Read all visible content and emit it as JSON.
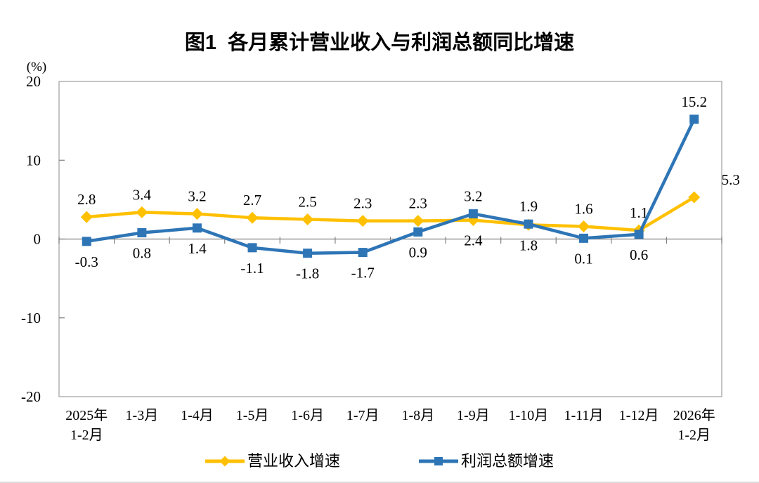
{
  "title": "图1  各月累计营业收入与利润总额同比增速",
  "chart_data": {
    "type": "line",
    "title": "图1  各月累计营业收入与利润总额同比增速",
    "unit_label": "(%)",
    "ylim": [
      -20,
      20
    ],
    "yticks": [
      20,
      10,
      0,
      -10,
      -20
    ],
    "grid": false,
    "legend_position": "bottom",
    "categories": [
      [
        "2025年",
        "1-2月"
      ],
      [
        "1-3月"
      ],
      [
        "1-4月"
      ],
      [
        "1-5月"
      ],
      [
        "1-6月"
      ],
      [
        "1-7月"
      ],
      [
        "1-8月"
      ],
      [
        "1-9月"
      ],
      [
        "1-10月"
      ],
      [
        "1-11月"
      ],
      [
        "1-12月"
      ],
      [
        "2026年",
        "1-2月"
      ]
    ],
    "series": [
      {
        "name": "营业收入增速",
        "color": "#FFC000",
        "marker": "diamond",
        "values": [
          2.8,
          3.4,
          3.2,
          2.7,
          2.5,
          2.3,
          2.3,
          2.4,
          1.8,
          1.6,
          1.1,
          5.3
        ],
        "label_side": [
          "above",
          "above",
          "above",
          "above",
          "above",
          "above",
          "above",
          "below",
          "below",
          "above",
          "above",
          "above"
        ],
        "label_dx": [
          0,
          0,
          0,
          0,
          0,
          0,
          0,
          0,
          0,
          0,
          0,
          52
        ]
      },
      {
        "name": "利润总额增速",
        "color": "#2E75B6",
        "marker": "square",
        "values": [
          -0.3,
          0.8,
          1.4,
          -1.1,
          -1.8,
          -1.7,
          0.9,
          3.2,
          1.9,
          0.1,
          0.6,
          15.2
        ],
        "label_side": [
          "below",
          "below",
          "below",
          "below",
          "below",
          "below",
          "below",
          "above",
          "above",
          "below",
          "below",
          "above"
        ],
        "label_dx": [
          0,
          0,
          0,
          0,
          0,
          0,
          0,
          0,
          0,
          0,
          0,
          0
        ]
      }
    ],
    "axis_colors": {
      "box_border": "#A6A6A6",
      "zero_line": "#7F7F7F",
      "tick": "#7F7F7F",
      "label": "#000000"
    }
  }
}
